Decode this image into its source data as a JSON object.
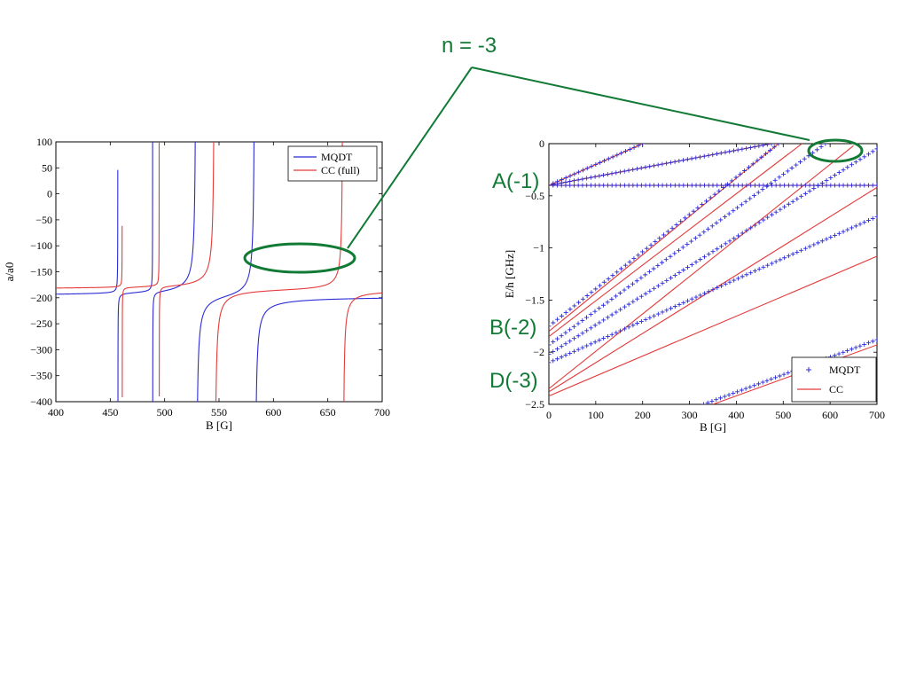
{
  "annotations": {
    "n_label": "n = -3",
    "a_label": "A(-1)",
    "b_label": "B(-2)",
    "d_label": "D(-3)",
    "color": "#117a35"
  },
  "colors": {
    "mqdt": "#2b2bd6",
    "cc": "#e43a3a"
  },
  "chart_data": [
    {
      "type": "line",
      "xlabel": "B [G]",
      "ylabel": "a/a0",
      "xlim": [
        400,
        700
      ],
      "ylim": [
        -400,
        100
      ],
      "xticks": [
        400,
        450,
        500,
        550,
        600,
        650,
        700
      ],
      "yticks": [
        100,
        50,
        0,
        -50,
        -100,
        -150,
        -200,
        -250,
        -300,
        -350,
        -400
      ],
      "grid": false,
      "legend": "top-right",
      "series": [
        {
          "name": "MQDT",
          "background": -197,
          "resonances": [
            {
              "x0": 457,
              "w": 0.15
            },
            {
              "x0": 489,
              "w": 0.15
            },
            {
              "x0": 529,
              "w": 2.6
            },
            {
              "x0": 583,
              "w": 2.6
            }
          ]
        },
        {
          "name": "CC (full)",
          "background": -184,
          "resonances": [
            {
              "x0": 461,
              "w": 0.08
            },
            {
              "x0": 495,
              "w": 0.12
            },
            {
              "x0": 546,
              "w": 2.6
            },
            {
              "x0": 664,
              "w": 1.8
            }
          ]
        }
      ]
    },
    {
      "type": "scatter",
      "xlabel": "B [G]",
      "ylabel": "E/h [GHz]",
      "xlim": [
        0,
        700
      ],
      "ylim": [
        -2.5,
        0
      ],
      "xticks": [
        0,
        100,
        200,
        300,
        400,
        500,
        600,
        700
      ],
      "yticks": [
        0,
        -0.5,
        -1,
        -1.5,
        -2,
        -2.5
      ],
      "grid": false,
      "legend": "bottom-right",
      "series": [
        {
          "name": "MQDT",
          "marker": "+",
          "lines": [
            [
              [
                0,
                -0.4
              ],
              [
                200,
                0
              ]
            ],
            [
              [
                0,
                -0.4
              ],
              [
                475,
                0
              ]
            ],
            [
              [
                0,
                -0.4
              ],
              [
                700,
                -0.4
              ]
            ],
            [
              [
                0,
                -1.75
              ],
              [
                490,
                0
              ]
            ],
            [
              [
                0,
                -1.93
              ],
              [
                590,
                0
              ]
            ],
            [
              [
                0,
                -2.02
              ],
              [
                700,
                -0.05
              ]
            ],
            [
              [
                0,
                -2.1
              ],
              [
                700,
                -0.7
              ]
            ],
            [
              [
                330,
                -2.5
              ],
              [
                700,
                -1.88
              ]
            ]
          ]
        },
        {
          "name": "CC",
          "marker": "line",
          "lines": [
            [
              [
                0,
                -0.4
              ],
              [
                200,
                0
              ]
            ],
            [
              [
                0,
                -0.4
              ],
              [
                475,
                0
              ]
            ],
            [
              [
                0,
                -0.4
              ],
              [
                700,
                -0.4
              ]
            ],
            [
              [
                0,
                -1.8
              ],
              [
                490,
                0
              ]
            ],
            [
              [
                0,
                -1.85
              ],
              [
                540,
                0
              ]
            ],
            [
              [
                0,
                -2.35
              ],
              [
                650,
                -0.02
              ]
            ],
            [
              [
                0,
                -2.38
              ],
              [
                700,
                -0.42
              ]
            ],
            [
              [
                0,
                -2.42
              ],
              [
                700,
                -1.08
              ]
            ],
            [
              [
                350,
                -2.5
              ],
              [
                700,
                -1.93
              ]
            ]
          ]
        }
      ]
    }
  ]
}
